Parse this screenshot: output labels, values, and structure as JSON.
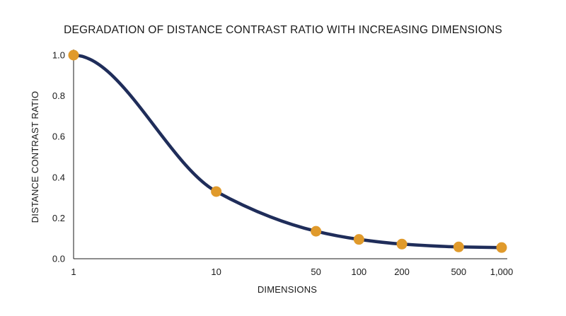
{
  "chart_data": {
    "type": "line",
    "title": "DEGRADATION OF DISTANCE CONTRAST RATIO WITH INCREASING DIMENSIONS",
    "xlabel": "DIMENSIONS",
    "ylabel": "DISTANCE CONTRAST RATIO",
    "x_scale": "log",
    "xlim": [
      1,
      1000
    ],
    "ylim": [
      0,
      1.0
    ],
    "x_ticks": [
      1,
      10,
      50,
      100,
      200,
      500,
      1000
    ],
    "x_tick_labels": [
      "1",
      "10",
      "50",
      "100",
      "200",
      "500",
      "1,000"
    ],
    "y_ticks": [
      0,
      0.2,
      0.4,
      0.6,
      0.8,
      1.0
    ],
    "y_tick_labels": [
      "0.0",
      "0.2",
      "0.4",
      "0.6",
      "0.8",
      "1.0"
    ],
    "grid": false,
    "series": [
      {
        "x": [
          1,
          10,
          50,
          100,
          200,
          500,
          1000
        ],
        "y": [
          1.0,
          0.33,
          0.135,
          0.095,
          0.072,
          0.058,
          0.055
        ]
      }
    ],
    "colors": {
      "line": "#1f2d5a",
      "marker": "#e09a2b",
      "axis": "#1a1a1a"
    }
  }
}
